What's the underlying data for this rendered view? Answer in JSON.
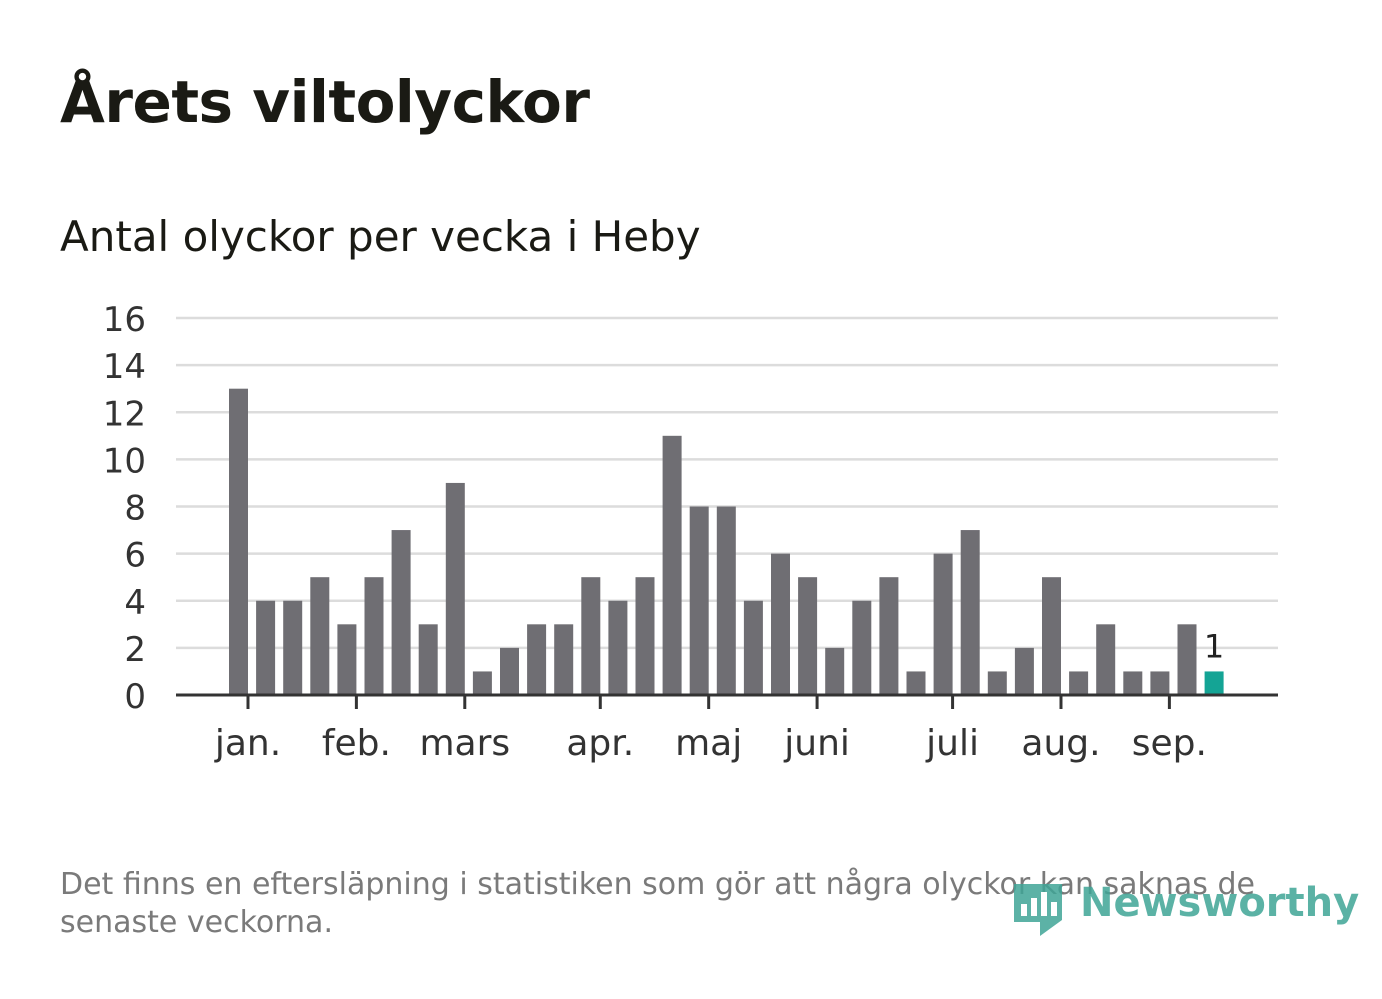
{
  "title": "Årets viltolyckor",
  "subtitle": "Antal olyckor per vecka i Heby",
  "note": "Det finns en eftersläpning i statistiken som gör att några olyckor kan saknas de senaste veckorna.",
  "brand": "Newsworthy",
  "colors": {
    "bar": "#6f6e73",
    "highlight": "#14a495",
    "grid": "#dcdcdc",
    "axis": "#333333",
    "text": "#333333"
  },
  "chart_data": {
    "type": "bar",
    "values": [
      13,
      4,
      4,
      5,
      3,
      5,
      7,
      3,
      9,
      1,
      2,
      3,
      3,
      5,
      4,
      5,
      11,
      8,
      8,
      4,
      6,
      5,
      2,
      4,
      5,
      1,
      6,
      7,
      1,
      2,
      5,
      1,
      3,
      1,
      1,
      3,
      1
    ],
    "highlight_index": 36,
    "highlight_label": "1",
    "ylim": [
      0,
      16
    ],
    "yticks": [
      0,
      2,
      4,
      6,
      8,
      10,
      12,
      14,
      16
    ],
    "month_labels": [
      {
        "label": "jan.",
        "bar": 0.35
      },
      {
        "label": "feb.",
        "bar": 4.35
      },
      {
        "label": "mars",
        "bar": 8.35
      },
      {
        "label": "apr.",
        "bar": 13.35
      },
      {
        "label": "maj",
        "bar": 17.35
      },
      {
        "label": "juni",
        "bar": 21.35
      },
      {
        "label": "juli",
        "bar": 26.35
      },
      {
        "label": "aug.",
        "bar": 30.35
      },
      {
        "label": "sep.",
        "bar": 34.35
      }
    ],
    "grid": true
  }
}
